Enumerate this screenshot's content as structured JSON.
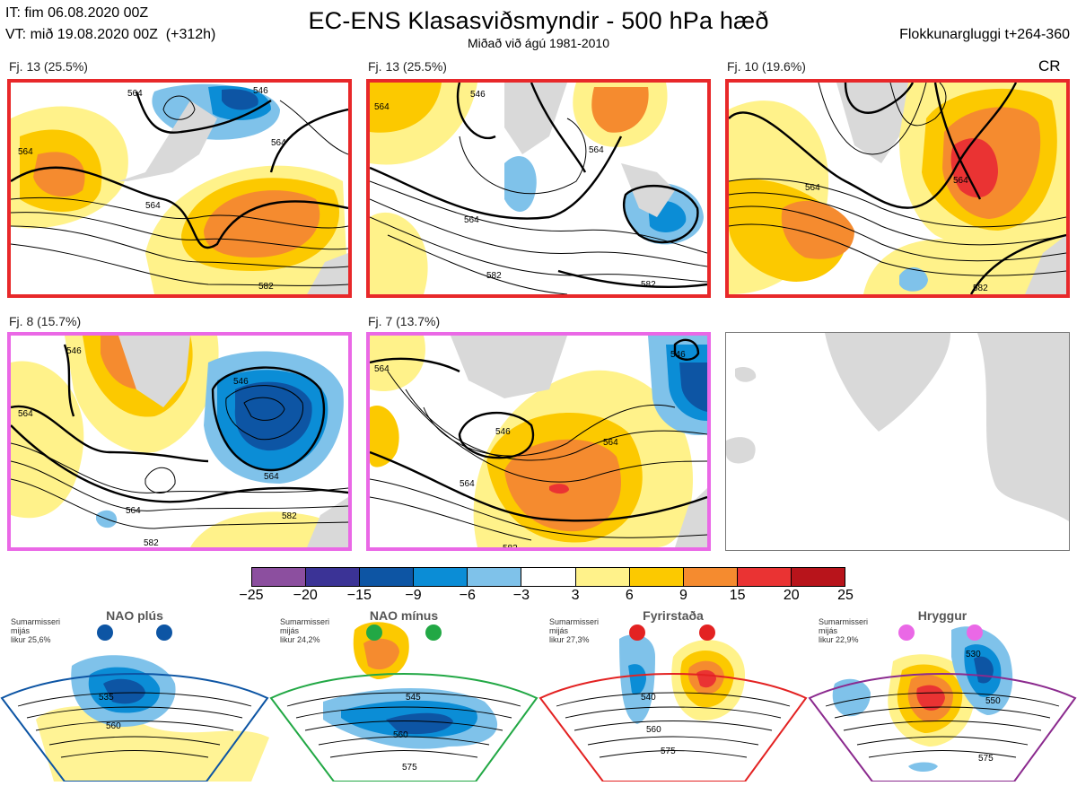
{
  "header": {
    "line1": "IT: fim 06.08.2020 00Z",
    "line2": "VT: mið 19.08.2020 00Z  (+312h)",
    "title": "EC-ENS Klasasviðsmyndir - 500 hPa hæð",
    "subtitle": "Miðað við ágú 1981-2010",
    "window": "Flokkunargluggi t+264-360",
    "cr": "CR"
  },
  "panels": [
    {
      "label": "Fj. 13 (25.5%)",
      "border": "#e8282a",
      "contours": [
        "564",
        "564",
        "546",
        "564",
        "564",
        "582"
      ]
    },
    {
      "label": "Fj. 13 (25.5%)",
      "border": "#e8282a",
      "contours": [
        "564",
        "546",
        "564",
        "564",
        "582",
        "582"
      ]
    },
    {
      "label": "Fj. 10 (19.6%)",
      "border": "#e8282a",
      "contours": [
        "564",
        "564",
        "582"
      ]
    },
    {
      "label": "Fj. 8 (15.7%)",
      "border": "#ea68e6",
      "contours": [
        "546",
        "564",
        "546",
        "564",
        "564",
        "582",
        "582"
      ]
    },
    {
      "label": "Fj. 7 (13.7%)",
      "border": "#ea68e6",
      "contours": [
        "546",
        "564",
        "546",
        "564",
        "564",
        "582"
      ]
    }
  ],
  "colorbar": {
    "colors": [
      "#8c4f9f",
      "#3b3396",
      "#0d55a4",
      "#0b8dd6",
      "#7fc2ea",
      "#ffffff",
      "#fff28a",
      "#fcc900",
      "#f58b2f",
      "#ea3333",
      "#b8141b"
    ],
    "ticks": [
      "−25",
      "−20",
      "−15",
      "−9",
      "−6",
      "−3",
      "3",
      "6",
      "9",
      "15",
      "20",
      "25"
    ]
  },
  "regimes": [
    {
      "name": "NAO plús",
      "line1": "Sumarmisseri",
      "line2": "mijás",
      "line3": "likur 25,6%",
      "color": "#0d55a4",
      "contours": [
        "535",
        "560"
      ]
    },
    {
      "name": "NAO mínus",
      "line1": "Sumarmisseri",
      "line2": "mijás",
      "line3": "likur 24,2%",
      "color": "#22a845",
      "contours": [
        "545",
        "560",
        "575"
      ]
    },
    {
      "name": "Fyrirstaða",
      "line1": "Sumarmisseri",
      "line2": "mijás",
      "line3": "likur 27,3%",
      "color": "#e32222",
      "contours": [
        "540",
        "560",
        "575"
      ]
    },
    {
      "name": "Hryggur",
      "line1": "Sumarmisseri",
      "line2": "mijás",
      "line3": "likur 22,9%",
      "color": "#ea68e6",
      "contours": [
        "530",
        "550",
        "575"
      ]
    }
  ]
}
